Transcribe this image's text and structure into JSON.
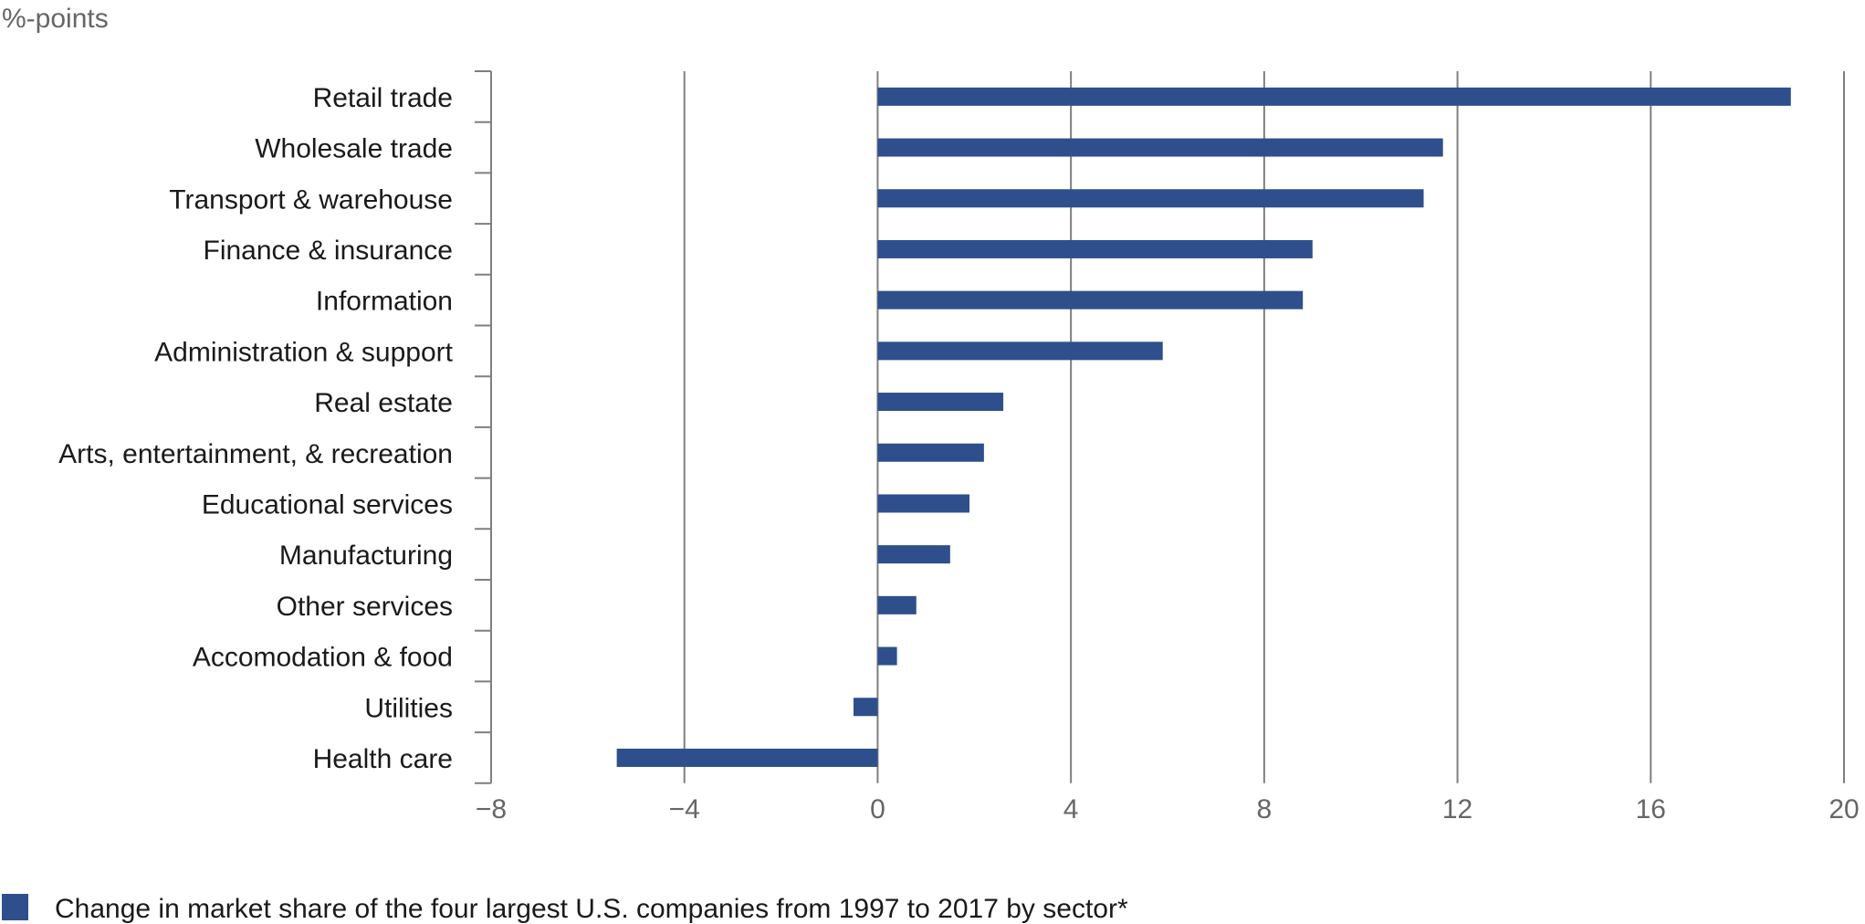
{
  "chart_data": {
    "type": "bar",
    "orientation": "horizontal",
    "unit_label": "%-points",
    "categories": [
      "Retail trade",
      "Wholesale trade",
      "Transport & warehouse",
      "Finance & insurance",
      "Information",
      "Administration & support",
      "Real estate",
      "Arts, entertainment, & recreation",
      "Educational services",
      "Manufacturing",
      "Other services",
      "Accomodation & food",
      "Utilities",
      "Health care"
    ],
    "series": [
      {
        "name": "Change in market share of the four largest U.S. companies from 1997 to 2017 by sector*",
        "values": [
          18.9,
          11.7,
          11.3,
          9.0,
          8.8,
          5.9,
          2.6,
          2.2,
          1.9,
          1.5,
          0.8,
          0.4,
          -0.5,
          -5.4
        ]
      }
    ],
    "xlim": [
      -8,
      20
    ],
    "xticks": [
      -8,
      -4,
      0,
      4,
      8,
      12,
      16,
      20
    ],
    "xtick_labels": [
      "−8",
      "−4",
      "0",
      "4",
      "8",
      "12",
      "16",
      "20"
    ],
    "grid": "vertical",
    "legend_position": "bottom-left",
    "bar_color": "#2e4f8c",
    "grid_color": "#7f7f7f"
  }
}
